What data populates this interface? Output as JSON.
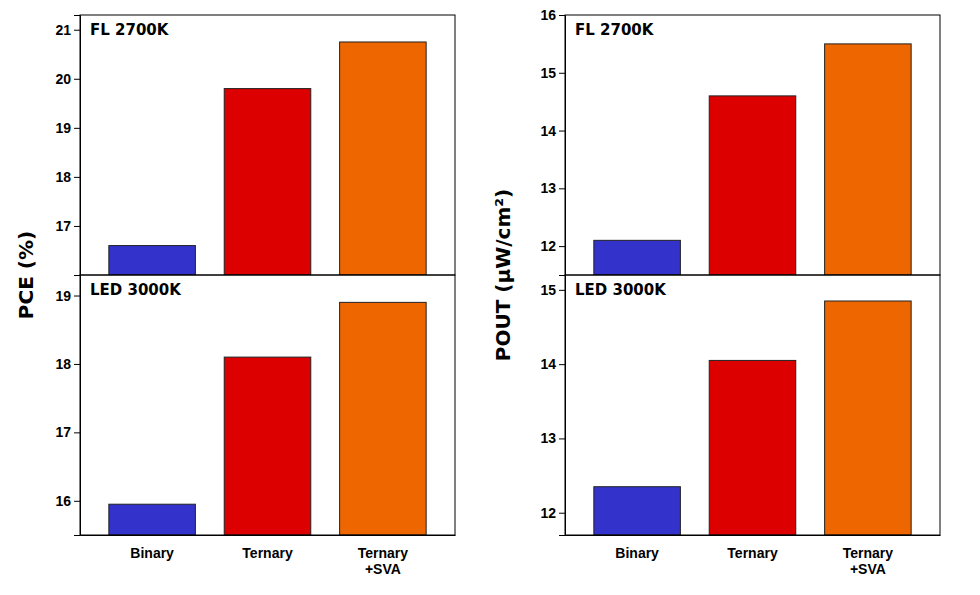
{
  "chart_data": [
    {
      "type": "bar",
      "categories": [
        "Binary",
        "Ternary",
        "Ternary\n+SVA"
      ],
      "values": [
        16.6,
        19.8,
        20.75
      ],
      "colors": [
        "#3333cc",
        "#dd0000",
        "#ee6600"
      ],
      "ylim": [
        16.0,
        21.3
      ],
      "yticks": [
        17,
        18,
        19,
        20,
        21
      ],
      "ylabel": "PCE (%)",
      "annotations": [
        "FL 2700K"
      ],
      "tick_labels": "y"
    },
    {
      "type": "bar",
      "categories": [
        "Binary",
        "Ternary",
        "Ternary\n+SVA"
      ],
      "values": [
        15.95,
        18.1,
        18.9
      ],
      "colors": [
        "#3333cc",
        "#dd0000",
        "#ee6600"
      ],
      "ylim": [
        15.5,
        19.3
      ],
      "yticks": [
        16,
        17,
        18,
        19
      ],
      "annotations": [
        "LED 3000K"
      ]
    },
    {
      "type": "bar",
      "categories": [
        "Binary",
        "Ternary",
        "Ternary\n+SVA"
      ],
      "values": [
        12.1,
        14.6,
        15.5
      ],
      "colors": [
        "#3333cc",
        "#dd0000",
        "#ee6600"
      ],
      "ylim": [
        11.5,
        16.0
      ],
      "yticks": [
        12,
        13,
        14,
        15,
        16
      ],
      "ylabel": "POUT (μW/cm²)",
      "annotations": [
        "FL 2700K"
      ],
      "tick_labels": "y"
    },
    {
      "type": "bar",
      "categories": [
        "Binary",
        "Ternary",
        "Ternary\n+SVA"
      ],
      "values": [
        12.35,
        14.05,
        14.85
      ],
      "colors": [
        "#3333cc",
        "#dd0000",
        "#ee6600"
      ],
      "ylim": [
        11.7,
        15.2
      ],
      "yticks": [
        12,
        13,
        14,
        15
      ],
      "annotations": [
        "LED 3000K"
      ]
    }
  ]
}
